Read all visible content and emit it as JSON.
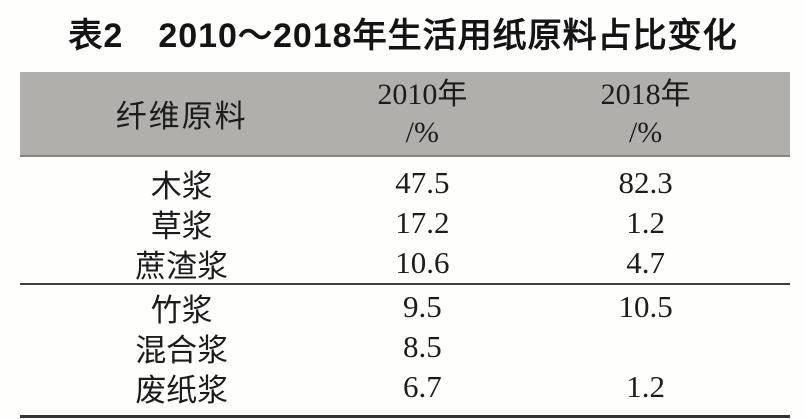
{
  "document": {
    "caption": "表2　2010～2018年生活用纸原料占比变化"
  },
  "table": {
    "header": {
      "fiber": "纤维原料",
      "y2010_line1": "2010年",
      "y2010_line2": "/%",
      "y2018_line1": "2018年",
      "y2018_line2": "/%"
    }
  },
  "colors": {
    "header_bg": "#b1afac",
    "text": "#1c1c1c",
    "mid_rule": "#41403d",
    "bottom_rule": "#343330"
  },
  "chart_data": {
    "type": "table",
    "title": "表2　2010～2018年生活用纸原料占比变化",
    "columns": [
      "纤维原料",
      "2010年/%",
      "2018年/%"
    ],
    "rows": [
      [
        "木浆",
        "47.5",
        "82.3"
      ],
      [
        "草浆",
        "17.2",
        "1.2"
      ],
      [
        "蔗渣浆",
        "10.6",
        "4.7"
      ],
      [
        "竹浆",
        "9.5",
        "10.5"
      ],
      [
        "混合浆",
        "8.5",
        ""
      ],
      [
        "废纸浆",
        "6.7",
        "1.2"
      ]
    ]
  }
}
